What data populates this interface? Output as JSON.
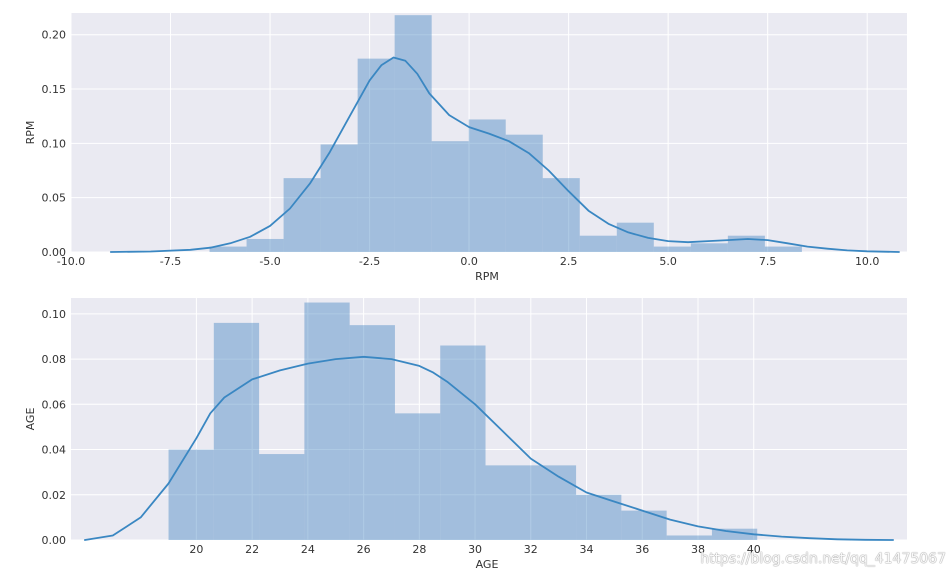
{
  "watermark": "https://blog.csdn.net/qq_41475067",
  "colors": {
    "plot_bg": "#eaeaf2",
    "grid": "#ffffff",
    "bar_fill": "#4c8ac4",
    "bar_opacity": 0.45,
    "kde_line": "#3a87c2"
  },
  "chart_data": [
    {
      "type": "bar",
      "xlabel": "RPM",
      "ylabel": "RPM",
      "xlim": [
        -10.0,
        11.0
      ],
      "ylim": [
        0.0,
        0.22
      ],
      "grid": true,
      "xticks": [
        -10.0,
        -7.5,
        -5.0,
        -2.5,
        0.0,
        2.5,
        5.0,
        7.5,
        10.0
      ],
      "xtick_labels": [
        "-10.0",
        "-7.5",
        "-5.0",
        "-2.5",
        "0.0",
        "2.5",
        "5.0",
        "7.5",
        "10.0"
      ],
      "yticks": [
        0.0,
        0.05,
        0.1,
        0.15,
        0.2
      ],
      "ytick_labels": [
        "0.00",
        "0.05",
        "0.10",
        "0.15",
        "0.20"
      ],
      "bins": [
        {
          "x0": -6.52,
          "x1": -5.59,
          "value": 0.005
        },
        {
          "x0": -5.59,
          "x1": -4.66,
          "value": 0.012
        },
        {
          "x0": -4.66,
          "x1": -3.73,
          "value": 0.068
        },
        {
          "x0": -3.73,
          "x1": -2.8,
          "value": 0.099
        },
        {
          "x0": -2.8,
          "x1": -1.87,
          "value": 0.178
        },
        {
          "x0": -1.87,
          "x1": -0.94,
          "value": 0.218
        },
        {
          "x0": -0.94,
          "x1": -0.01,
          "value": 0.102
        },
        {
          "x0": -0.01,
          "x1": 0.92,
          "value": 0.122
        },
        {
          "x0": 0.92,
          "x1": 1.85,
          "value": 0.108
        },
        {
          "x0": 1.85,
          "x1": 2.78,
          "value": 0.068
        },
        {
          "x0": 2.78,
          "x1": 3.71,
          "value": 0.015
        },
        {
          "x0": 3.71,
          "x1": 4.64,
          "value": 0.027
        },
        {
          "x0": 4.64,
          "x1": 5.57,
          "value": 0.005
        },
        {
          "x0": 5.57,
          "x1": 6.5,
          "value": 0.008
        },
        {
          "x0": 6.5,
          "x1": 7.43,
          "value": 0.015
        },
        {
          "x0": 7.43,
          "x1": 8.36,
          "value": 0.005
        }
      ],
      "kde": {
        "x": [
          -9.0,
          -8.0,
          -7.0,
          -6.5,
          -6.0,
          -5.5,
          -5.0,
          -4.5,
          -4.0,
          -3.5,
          -3.0,
          -2.5,
          -2.2,
          -1.9,
          -1.6,
          -1.3,
          -1.0,
          -0.5,
          0.0,
          0.5,
          1.0,
          1.5,
          2.0,
          2.5,
          3.0,
          3.5,
          4.0,
          4.5,
          5.0,
          5.5,
          6.0,
          6.5,
          7.0,
          7.5,
          8.0,
          8.5,
          9.0,
          9.5,
          10.0,
          10.8
        ],
        "y": [
          0.0,
          0.0005,
          0.002,
          0.004,
          0.008,
          0.014,
          0.024,
          0.04,
          0.063,
          0.092,
          0.125,
          0.158,
          0.172,
          0.179,
          0.176,
          0.164,
          0.146,
          0.126,
          0.115,
          0.109,
          0.102,
          0.091,
          0.075,
          0.056,
          0.038,
          0.026,
          0.018,
          0.013,
          0.01,
          0.009,
          0.01,
          0.011,
          0.012,
          0.011,
          0.008,
          0.005,
          0.003,
          0.0015,
          0.0006,
          0.0
        ]
      }
    },
    {
      "type": "bar",
      "xlabel": "AGE",
      "ylabel": "AGE",
      "xlim": [
        15.5,
        45.5
      ],
      "ylim": [
        0.0,
        0.107
      ],
      "grid": true,
      "xticks": [
        20,
        22,
        24,
        26,
        28,
        30,
        32,
        34,
        36,
        38,
        40
      ],
      "xtick_labels": [
        "20",
        "22",
        "24",
        "26",
        "28",
        "30",
        "32",
        "34",
        "36",
        "38",
        "40"
      ],
      "yticks": [
        0.0,
        0.02,
        0.04,
        0.06,
        0.08,
        0.1
      ],
      "ytick_labels": [
        "0.00",
        "0.02",
        "0.04",
        "0.06",
        "0.08",
        "0.10"
      ],
      "bins": [
        {
          "x0": 19.0,
          "x1": 20.625,
          "value": 0.04
        },
        {
          "x0": 20.625,
          "x1": 22.25,
          "value": 0.096
        },
        {
          "x0": 22.25,
          "x1": 23.875,
          "value": 0.038
        },
        {
          "x0": 23.875,
          "x1": 25.5,
          "value": 0.105
        },
        {
          "x0": 25.5,
          "x1": 27.125,
          "value": 0.095
        },
        {
          "x0": 27.125,
          "x1": 28.75,
          "value": 0.056
        },
        {
          "x0": 28.75,
          "x1": 30.375,
          "value": 0.086
        },
        {
          "x0": 30.375,
          "x1": 32.0,
          "value": 0.033
        },
        {
          "x0": 32.0,
          "x1": 33.625,
          "value": 0.033
        },
        {
          "x0": 33.625,
          "x1": 35.25,
          "value": 0.02
        },
        {
          "x0": 35.25,
          "x1": 36.875,
          "value": 0.013
        },
        {
          "x0": 36.875,
          "x1": 38.5,
          "value": 0.002
        },
        {
          "x0": 38.5,
          "x1": 40.125,
          "value": 0.005
        }
      ],
      "kde": {
        "x": [
          16.0,
          17.0,
          18.0,
          19.0,
          20.0,
          20.5,
          21.0,
          22.0,
          23.0,
          24.0,
          25.0,
          26.0,
          27.0,
          28.0,
          28.5,
          29.0,
          30.0,
          31.0,
          32.0,
          33.0,
          34.0,
          35.0,
          36.0,
          37.0,
          38.0,
          39.0,
          40.0,
          41.0,
          42.0,
          43.0,
          44.0,
          45.0
        ],
        "y": [
          0.0,
          0.002,
          0.01,
          0.025,
          0.045,
          0.056,
          0.063,
          0.071,
          0.075,
          0.078,
          0.08,
          0.081,
          0.08,
          0.077,
          0.074,
          0.07,
          0.06,
          0.048,
          0.036,
          0.028,
          0.021,
          0.017,
          0.013,
          0.009,
          0.006,
          0.004,
          0.0025,
          0.0015,
          0.0008,
          0.0003,
          0.0001,
          0.0
        ]
      }
    }
  ]
}
